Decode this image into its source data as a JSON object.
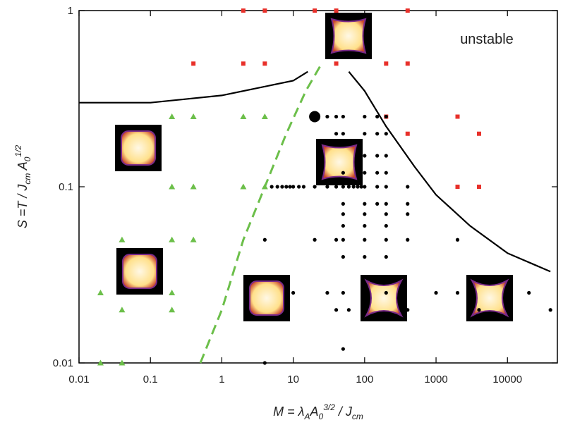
{
  "chart_data": {
    "type": "scatter",
    "log_x": true,
    "log_y": true,
    "xlim": [
      0.01,
      50000
    ],
    "ylim": [
      0.01,
      1
    ],
    "xticks": [
      0.01,
      0.1,
      1,
      10,
      100,
      1000,
      10000
    ],
    "yticks": [
      0.01,
      0.1,
      1
    ],
    "xlabel": [
      {
        "text": "M = λ",
        "pos": "base"
      },
      {
        "text": "A",
        "pos": "sub"
      },
      {
        "text": "A",
        "pos": "base"
      },
      {
        "text": "0",
        "pos": "sub"
      },
      {
        "text": "3/2",
        "pos": "sup"
      },
      {
        "text": " / J",
        "pos": "base"
      },
      {
        "text": "cm",
        "pos": "sub"
      }
    ],
    "ylabel": [
      {
        "text": "S =T / J",
        "pos": "base"
      },
      {
        "text": "cm",
        "pos": "sub"
      },
      {
        "text": " A",
        "pos": "base"
      },
      {
        "text": "0",
        "pos": "sub"
      },
      {
        "text": "1/2",
        "pos": "sup"
      }
    ],
    "annotation": "unstable",
    "series": [
      {
        "marker": "triangle",
        "color": "#6cbf4a",
        "x": [
          0.2,
          0.4,
          2,
          4,
          0.2,
          0.4,
          2,
          4,
          0.04,
          0.2,
          0.4,
          0.02,
          0.2,
          0.04,
          0.2,
          0.02,
          0.04
        ],
        "values": [
          0.25,
          0.25,
          0.25,
          0.25,
          0.1,
          0.1,
          0.1,
          0.1,
          0.05,
          0.05,
          0.05,
          0.025,
          0.025,
          0.02,
          0.02,
          0.01,
          0.01
        ]
      },
      {
        "marker": "square",
        "color": "#e8302a",
        "x": [
          2,
          4,
          20,
          40,
          400,
          0.4,
          2,
          4,
          40,
          200,
          400,
          200,
          2000,
          400,
          4000,
          2000,
          4000
        ],
        "values": [
          1,
          1,
          1,
          1,
          1,
          0.5,
          0.5,
          0.5,
          0.5,
          0.5,
          0.5,
          0.25,
          0.25,
          0.2,
          0.2,
          0.1,
          0.1
        ]
      },
      {
        "marker": "circle",
        "color": "#000000",
        "x": [
          30,
          40,
          50,
          100,
          150,
          200,
          40,
          50,
          100,
          150,
          200,
          100,
          150,
          200,
          50,
          100,
          150,
          200,
          5,
          6,
          7,
          8,
          9,
          10,
          12,
          14,
          20,
          30,
          40,
          50,
          60,
          70,
          80,
          90,
          100,
          150,
          200,
          400,
          50,
          100,
          150,
          200,
          400,
          50,
          100,
          200,
          400,
          50,
          100,
          200,
          4,
          20,
          40,
          50,
          100,
          200,
          400,
          2000,
          50,
          100,
          200,
          10,
          30,
          50,
          100,
          200,
          1000,
          2000,
          20000,
          40,
          60,
          400,
          4000,
          40000,
          50,
          4
        ],
        "values": [
          0.25,
          0.25,
          0.25,
          0.25,
          0.25,
          0.25,
          0.2,
          0.2,
          0.2,
          0.2,
          0.2,
          0.15,
          0.15,
          0.15,
          0.12,
          0.12,
          0.12,
          0.12,
          0.1,
          0.1,
          0.1,
          0.1,
          0.1,
          0.1,
          0.1,
          0.1,
          0.1,
          0.1,
          0.1,
          0.1,
          0.1,
          0.1,
          0.1,
          0.1,
          0.1,
          0.1,
          0.1,
          0.1,
          0.08,
          0.08,
          0.08,
          0.08,
          0.08,
          0.07,
          0.07,
          0.07,
          0.07,
          0.06,
          0.06,
          0.06,
          0.05,
          0.05,
          0.05,
          0.05,
          0.05,
          0.05,
          0.05,
          0.05,
          0.04,
          0.04,
          0.04,
          0.025,
          0.025,
          0.025,
          0.025,
          0.025,
          0.025,
          0.025,
          0.025,
          0.02,
          0.02,
          0.02,
          0.02,
          0.02,
          0.012,
          0.01
        ]
      },
      {
        "marker": "big-circle",
        "color": "#000000",
        "x": [
          20
        ],
        "values": [
          0.25
        ]
      },
      {
        "marker": "line",
        "color": "#000000",
        "x": [
          0.01,
          0.1,
          1,
          10,
          16
        ],
        "values": [
          0.3,
          0.3,
          0.33,
          0.4,
          0.45
        ]
      },
      {
        "marker": "line",
        "color": "#000000",
        "x": [
          60,
          100,
          200,
          500,
          1000,
          3000,
          10000,
          40000
        ],
        "values": [
          0.45,
          0.35,
          0.22,
          0.13,
          0.09,
          0.06,
          0.042,
          0.033
        ]
      },
      {
        "marker": "dashed-line",
        "color": "#6cbf4a",
        "x": [
          0.5,
          1,
          2,
          4,
          8,
          15,
          25
        ],
        "values": [
          0.01,
          0.02,
          0.05,
          0.1,
          0.2,
          0.35,
          0.5
        ]
      }
    ]
  }
}
